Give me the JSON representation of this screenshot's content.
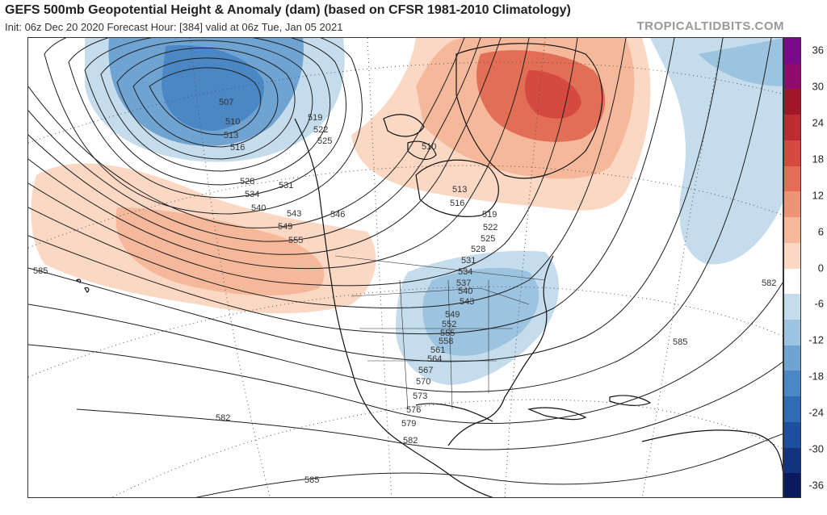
{
  "header": {
    "title": "GEFS 500mb Geopotential Height & Anomaly (dam) (based on CFSR 1981-2010 Climatology)",
    "subtitle": "Init: 06z Dec 20 2020   Forecast Hour: [384]   valid at 06z Tue, Jan 05 2021",
    "brand": "TROPICALTIDBITS.COM"
  },
  "colorbar": {
    "labels": [
      "36",
      "30",
      "24",
      "18",
      "12",
      "6",
      "0",
      "-6",
      "-12",
      "-18",
      "-24",
      "-30",
      "-36"
    ],
    "colors": [
      "#0a1a5c",
      "#12337f",
      "#1c4fa0",
      "#2f6cb5",
      "#4a87c4",
      "#6fa4d2",
      "#9cc3df",
      "#c4dcec",
      "#ffffff",
      "#fbd8c4",
      "#f5b89a",
      "#ec9475",
      "#e26e56",
      "#d44a40",
      "#be2c33",
      "#a1172a",
      "#8e0c6e",
      "#7a0a8c"
    ]
  },
  "map": {
    "contour_labels": [
      "507",
      "510",
      "513",
      "516",
      "519",
      "522",
      "525",
      "528",
      "531",
      "534",
      "540",
      "543",
      "546",
      "549",
      "555",
      "510",
      "513",
      "516",
      "519",
      "522",
      "525",
      "528",
      "531",
      "534",
      "537",
      "540",
      "543",
      "549",
      "552",
      "555",
      "558",
      "561",
      "564",
      "567",
      "570",
      "573",
      "576",
      "579",
      "582",
      "582",
      "582",
      "585",
      "585",
      "585"
    ],
    "anomaly_regions": [
      {
        "name": "northwest-pacific-trough",
        "sign": "negative",
        "color": "#6fa4d2"
      },
      {
        "name": "pacific-ridge",
        "sign": "positive",
        "color": "#f5b89a"
      },
      {
        "name": "greenland-ridge",
        "sign": "positive",
        "color": "#e26e56"
      },
      {
        "name": "eastern-us-trough",
        "sign": "negative",
        "color": "#9cc3df"
      },
      {
        "name": "north-atlantic-trough",
        "sign": "negative",
        "color": "#c4dcec"
      }
    ]
  }
}
